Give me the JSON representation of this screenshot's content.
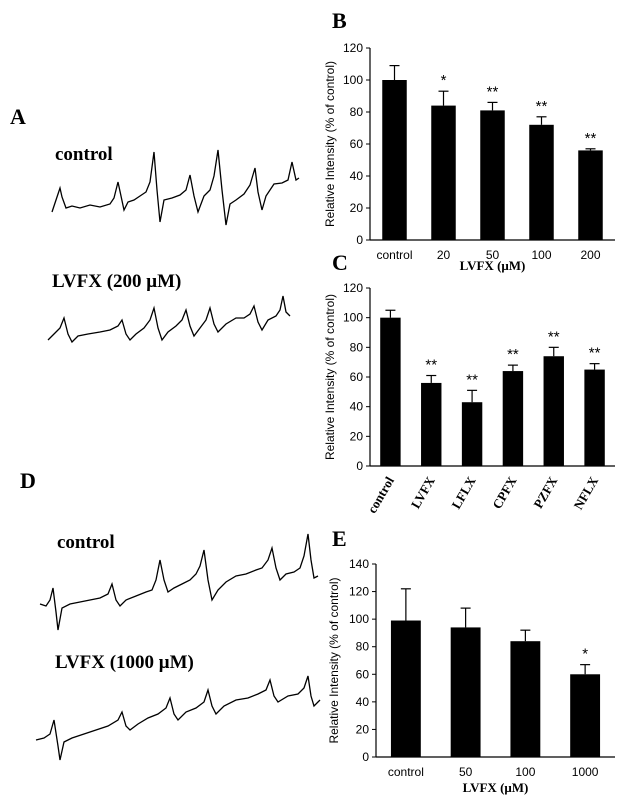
{
  "panels": {
    "A": {
      "letter": "A",
      "labels": [
        "control",
        "LVFX (200 μM)"
      ]
    },
    "D": {
      "letter": "D",
      "labels": [
        "control",
        "LVFX (1000 μM)"
      ]
    }
  },
  "chart_data": [
    {
      "id": "B",
      "letter": "B",
      "type": "bar",
      "categories": [
        "control",
        "20",
        "50",
        "100",
        "200"
      ],
      "values": [
        100,
        84,
        81,
        72,
        56
      ],
      "errors": [
        9,
        9,
        5,
        5,
        1
      ],
      "significance": [
        "",
        "*",
        "**",
        "**",
        "**"
      ],
      "ylabel": "Relative Intensity (% of control)",
      "xlabel": "LVFX (μM)",
      "ylim": [
        0,
        120
      ],
      "yticks": [
        0,
        20,
        40,
        60,
        80,
        100,
        120
      ],
      "rotated_categories": false
    },
    {
      "id": "C",
      "letter": "C",
      "type": "bar",
      "categories": [
        "control",
        "LVFX",
        "LFLX",
        "CPFX",
        "PZFX",
        "NFLX"
      ],
      "values": [
        100,
        56,
        43,
        64,
        74,
        65
      ],
      "errors": [
        5,
        5,
        8,
        4,
        6,
        4
      ],
      "significance": [
        "",
        "**",
        "**",
        "**",
        "**",
        "**"
      ],
      "ylabel": "Relative Intensity (% of control)",
      "xlabel": "",
      "ylim": [
        0,
        120
      ],
      "yticks": [
        0,
        20,
        40,
        60,
        80,
        100,
        120
      ],
      "rotated_categories": true
    },
    {
      "id": "E",
      "letter": "E",
      "type": "bar",
      "categories": [
        "control",
        "50",
        "100",
        "1000"
      ],
      "values": [
        99,
        94,
        84,
        60
      ],
      "errors": [
        23,
        14,
        8,
        7
      ],
      "significance": [
        "",
        "",
        "",
        "*"
      ],
      "ylabel": "Relative Intensity (% of control)",
      "xlabel": "LVFX (μM)",
      "ylim": [
        0,
        140
      ],
      "yticks": [
        0,
        20,
        40,
        60,
        80,
        100,
        120,
        140
      ],
      "rotated_categories": false
    }
  ]
}
